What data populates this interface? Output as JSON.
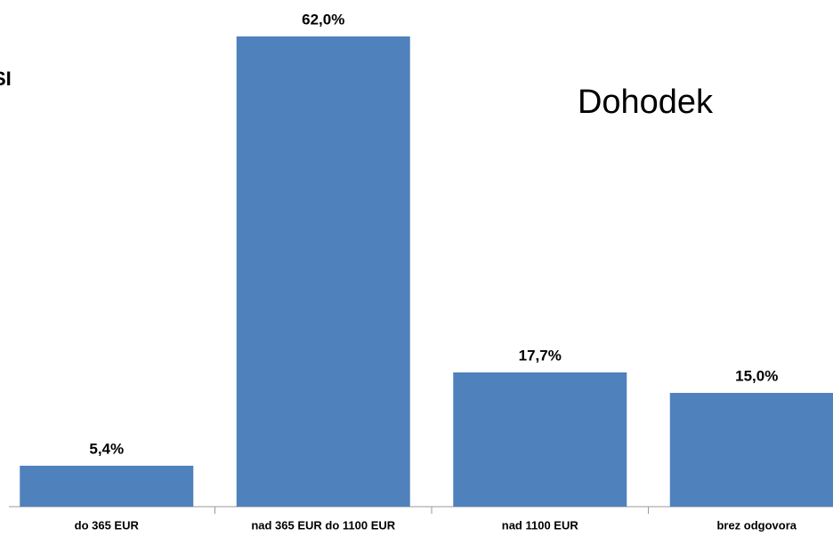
{
  "chart_data": {
    "type": "bar",
    "title": "Dohodek",
    "annotation": "SI",
    "categories": [
      "do 365 EUR",
      "nad 365 EUR do 1100 EUR",
      "nad 1100 EUR",
      "brez odgovora"
    ],
    "values": [
      5.4,
      62.0,
      17.7,
      15.0
    ],
    "value_labels": [
      "5,4%",
      "62,0%",
      "17,7%",
      "15,0%"
    ],
    "color": "#4f81bd"
  }
}
